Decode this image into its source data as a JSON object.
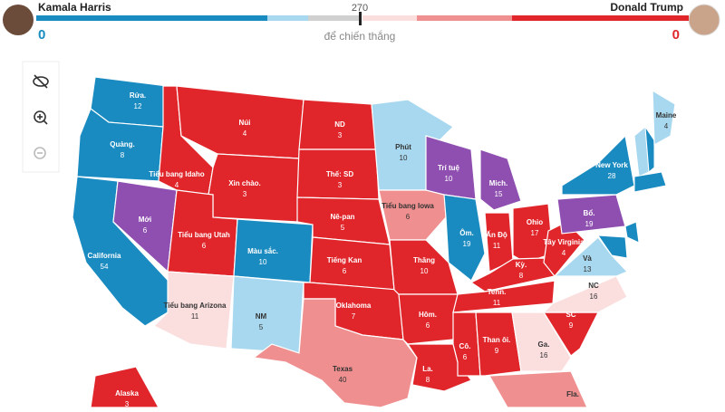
{
  "header": {
    "left": {
      "name": "Kamala Harris",
      "votes": 0,
      "color": "#1a8bc0"
    },
    "right": {
      "name": "Donald Trump",
      "votes": 0,
      "color": "#e0262b"
    },
    "threshold": 270,
    "threshold_label": "để chiến thắng"
  },
  "states": [
    {
      "label": "Rửa.",
      "votes": 12,
      "color": "#1a8bc0"
    },
    {
      "label": "Quảng.",
      "votes": 8,
      "color": "#1a8bc0"
    },
    {
      "label": "California",
      "votes": 54,
      "color": "#1a8bc0"
    },
    {
      "label": "Mới",
      "votes": 6,
      "color": "#8e4fb0"
    },
    {
      "label": "Tiểu bang Idaho",
      "votes": 4,
      "color": "#e0262b"
    },
    {
      "label": "Núi",
      "votes": 4,
      "color": "#e0262b"
    },
    {
      "label": "Xin chào.",
      "votes": 3,
      "color": "#e0262b"
    },
    {
      "label": "Tiểu bang Utah",
      "votes": 6,
      "color": "#e0262b"
    },
    {
      "label": "Tiểu bang Arizona",
      "votes": 11,
      "color": "#fbdede"
    },
    {
      "label": "Màu sắc.",
      "votes": 10,
      "color": "#1a8bc0"
    },
    {
      "label": "NM",
      "votes": 5,
      "color": "#a8d8ef"
    },
    {
      "label": "ND",
      "votes": 3,
      "color": "#e0262b"
    },
    {
      "label": "Thế: SD",
      "votes": 3,
      "color": "#e0262b"
    },
    {
      "label": "Nê-pan",
      "votes": 5,
      "color": "#e0262b"
    },
    {
      "label": "Tiếng Kan",
      "votes": 6,
      "color": "#e0262b"
    },
    {
      "label": "Oklahoma",
      "votes": 7,
      "color": "#e0262b"
    },
    {
      "label": "Texas",
      "votes": 40,
      "color": "#ef8f8f"
    },
    {
      "label": "Phút",
      "votes": 10,
      "color": "#a8d8ef"
    },
    {
      "label": "Tiểu bang Iowa",
      "votes": 6,
      "color": "#ef8f8f"
    },
    {
      "label": "Thăng",
      "votes": 10,
      "color": "#e0262b"
    },
    {
      "label": "Hôm.",
      "votes": 6,
      "color": "#e0262b"
    },
    {
      "label": "La.",
      "votes": 8,
      "color": "#e0262b"
    },
    {
      "label": "Trí tuệ",
      "votes": 10,
      "color": "#8e4fb0"
    },
    {
      "label": "Ôm.",
      "votes": 19,
      "color": "#1a8bc0"
    },
    {
      "label": "Mich.",
      "votes": 15,
      "color": "#8e4fb0"
    },
    {
      "label": "Ấn Độ",
      "votes": 11,
      "color": "#e0262b"
    },
    {
      "label": "Ohio",
      "votes": 17,
      "color": "#e0262b"
    },
    {
      "label": "Kỳ.",
      "votes": 8,
      "color": "#e0262b"
    },
    {
      "label": "Tenn.",
      "votes": 11,
      "color": "#e0262b"
    },
    {
      "label": "Cô.",
      "votes": 6,
      "color": "#e0262b"
    },
    {
      "label": "Than ôi.",
      "votes": 9,
      "color": "#e0262b"
    },
    {
      "label": "Ga.",
      "votes": 16,
      "color": "#fbdede"
    },
    {
      "label": "Fla.",
      "color": "#ef8f8f"
    },
    {
      "label": "SC",
      "votes": 9,
      "color": "#e0262b"
    },
    {
      "label": "NC",
      "votes": 16,
      "color": "#fbdede"
    },
    {
      "label": "Và",
      "votes": 13,
      "color": "#a8d8ef"
    },
    {
      "label": "Tây Virginia",
      "votes": 4,
      "color": "#e0262b"
    },
    {
      "label": "Bổ.",
      "votes": 19,
      "color": "#8e4fb0"
    },
    {
      "label": "New York",
      "votes": 28,
      "color": "#1a8bc0"
    },
    {
      "label": "Maine",
      "votes": 4,
      "color": "#a8d8ef"
    },
    {
      "label": "Alaska",
      "votes": 3,
      "color": "#e0262b"
    }
  ]
}
